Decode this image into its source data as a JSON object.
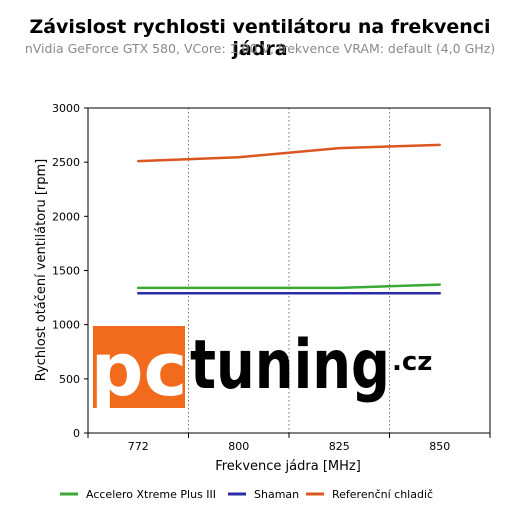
{
  "chart_data": {
    "type": "line",
    "title": "Závislost rychlosti ventilátoru na frekvenci jádra",
    "subtitle": "nVidia GeForce GTX 580, VCore: 1,00 V, frekvence VRAM: default (4,0 GHz)",
    "xlabel": "Frekvence jádra [MHz]",
    "ylabel": "Rychlost otáčení ventilátoru [rpm]",
    "categories": [
      "772",
      "800",
      "825",
      "850"
    ],
    "ylim": [
      0,
      3000
    ],
    "yticks": [
      0,
      500,
      1000,
      1500,
      2000,
      2500,
      3000
    ],
    "grid": "dotted-vertical",
    "legend_position": "bottom",
    "series": [
      {
        "name": "Accelero Xtreme Plus III",
        "values": [
          1340,
          1340,
          1340,
          1370
        ],
        "color": "#3aa935"
      },
      {
        "name": "Shaman",
        "values": [
          1290,
          1290,
          1290,
          1290
        ],
        "color": "#2b2baa"
      },
      {
        "name": "Referenční chladič",
        "values": [
          2510,
          2545,
          2630,
          2660
        ],
        "color": "#d9561e"
      }
    ]
  },
  "watermark": {
    "left": "pc",
    "right": "tuning",
    "suffix": ".cz",
    "left_bg": "#f26a1b"
  }
}
